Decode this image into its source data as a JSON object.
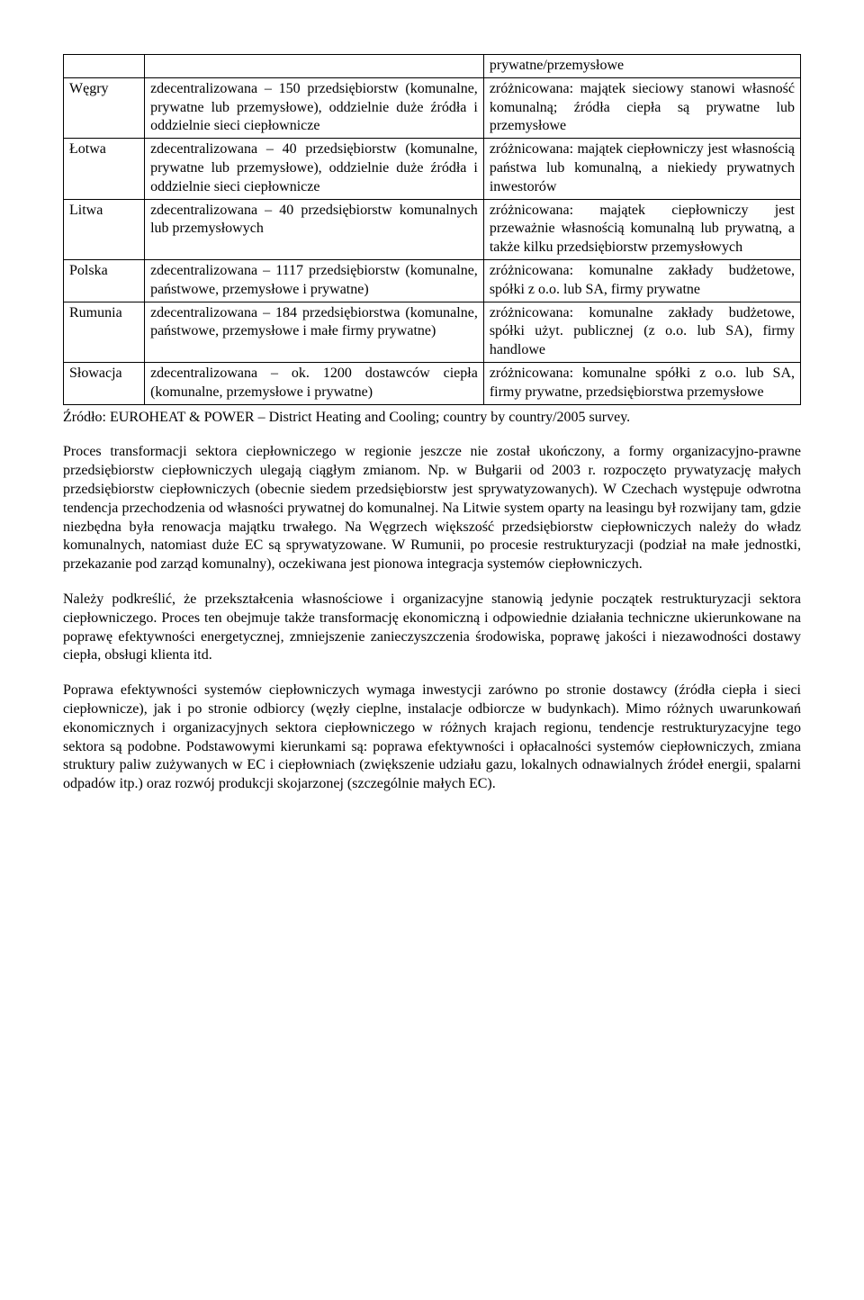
{
  "table": {
    "rows": [
      {
        "country": "",
        "col1": "",
        "col2": "prywatne/przemysłowe"
      },
      {
        "country": "Węgry",
        "col1": "zdecentralizowana – 150 przedsiębiorstw (komunalne, prywatne lub przemysłowe), oddzielnie duże źródła i oddzielnie sieci ciepłownicze",
        "col2": "zróżnicowana: majątek sieciowy stanowi własność komunalną; źródła ciepła są prywatne lub przemysłowe"
      },
      {
        "country": "Łotwa",
        "col1": "zdecentralizowana – 40 przedsiębiorstw (komunalne, prywatne lub przemysłowe), oddzielnie duże źródła i oddzielnie sieci ciepłownicze",
        "col2": "zróżnicowana: majątek ciepłowniczy jest własnością państwa lub komunalną, a niekiedy prywatnych inwestorów"
      },
      {
        "country": "Litwa",
        "col1": "zdecentralizowana – 40 przedsiębiorstw komunalnych lub przemysłowych",
        "col2": "zróżnicowana: majątek ciepłowniczy jest przeważnie własnością komunalną lub prywatną, a także kilku przedsiębiorstw przemysłowych"
      },
      {
        "country": "Polska",
        "col1": "zdecentralizowana – 1117 przedsiębiorstw (komunalne, państwowe, przemysłowe i prywatne)",
        "col2": "zróżnicowana: komunalne zakłady budżetowe, spółki z o.o. lub SA, firmy prywatne"
      },
      {
        "country": "Rumunia",
        "col1": "zdecentralizowana – 184 przedsiębiorstwa (komunalne, państwowe, przemysłowe i małe firmy prywatne)",
        "col2": "zróżnicowana: komunalne zakłady budżetowe, spółki użyt. publicznej (z o.o. lub SA), firmy handlowe"
      },
      {
        "country": "Słowacja",
        "col1": "zdecentralizowana – ok. 1200 dostawców ciepła (komunalne, przemysłowe i prywatne)",
        "col2": "zróżnicowana: komunalne spółki z o.o. lub SA, firmy prywatne, przedsiębiorstwa przemysłowe"
      }
    ]
  },
  "source": "Źródło: EUROHEAT & POWER – District Heating and Cooling; country by country/2005 survey.",
  "paragraphs": {
    "p1": "Proces transformacji sektora ciepłowniczego w regionie jeszcze nie został ukończony, a formy organizacyjno-prawne przedsiębiorstw ciepłowniczych ulegają ciągłym zmianom. Np. w Bułgarii od 2003 r. rozpoczęto prywatyzację małych przedsiębiorstw ciepłowniczych (obecnie siedem przedsiębiorstw jest sprywatyzowanych). W Czechach występuje odwrotna tendencja przechodzenia od własności prywatnej do komunalnej. Na Litwie system oparty na leasingu był rozwijany tam, gdzie niezbędna była renowacja majątku trwałego. Na Węgrzech większość przedsiębiorstw ciepłowniczych należy do władz komunalnych, natomiast duże EC są sprywatyzowane. W Rumunii, po procesie restrukturyzacji (podział na małe jednostki, przekazanie pod zarząd komunalny), oczekiwana jest pionowa integracja systemów ciepłowniczych.",
    "p2": "Należy podkreślić, że przekształcenia własnościowe i organizacyjne stanowią jedynie początek restrukturyzacji sektora ciepłowniczego. Proces ten obejmuje także transformację ekonomiczną i odpowiednie działania techniczne ukierunkowane na poprawę efektywności energetycznej, zmniejszenie zanieczyszczenia środowiska, poprawę jakości i niezawodności dostawy ciepła, obsługi klienta itd.",
    "p3": "Poprawa efektywności systemów ciepłowniczych wymaga inwestycji zarówno po stronie dostawcy (źródła ciepła i sieci ciepłownicze), jak i po stronie odbiorcy (węzły cieplne, instalacje odbiorcze w budynkach). Mimo różnych uwarunkowań ekonomicznych i organizacyjnych sektora ciepłowniczego w różnych krajach regionu, tendencje restrukturyzacyjne tego sektora są podobne. Podstawowymi kierunkami są: poprawa efektywności i opłacalności systemów ciepłowniczych, zmiana struktury paliw zużywanych w EC i ciepłowniach (zwiększenie udziału gazu, lokalnych odnawialnych źródeł energii, spalarni odpadów itp.) oraz rozwój produkcji skojarzonej (szczególnie małych EC)."
  }
}
